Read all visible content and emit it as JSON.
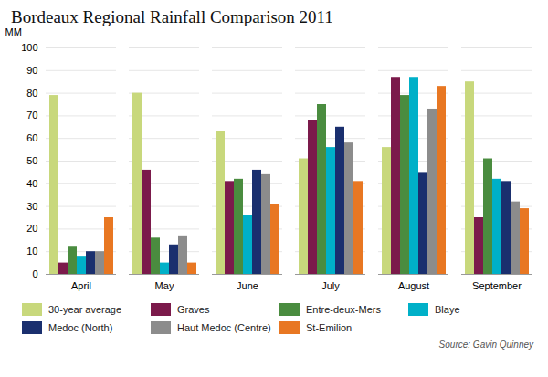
{
  "chart_data": {
    "type": "bar",
    "title": "Bordeaux Regional Rainfall Comparison 2011",
    "y_label": "MM",
    "categories": [
      "April",
      "May",
      "June",
      "July",
      "August",
      "September"
    ],
    "series": [
      {
        "name": "30-year average",
        "color": "#c8d87c",
        "values": [
          79,
          80,
          63,
          51,
          56,
          85
        ]
      },
      {
        "name": "Graves",
        "color": "#7b1a4b",
        "values": [
          5,
          46,
          41,
          68,
          87,
          25
        ]
      },
      {
        "name": "Entre-deux-Mers",
        "color": "#4a8c3f",
        "values": [
          12,
          16,
          42,
          75,
          79,
          51
        ]
      },
      {
        "name": "Blaye",
        "color": "#00b0c8",
        "values": [
          8,
          5,
          26,
          56,
          87,
          42
        ]
      },
      {
        "name": "Medoc (North)",
        "color": "#1a2f6e",
        "values": [
          10,
          13,
          46,
          65,
          45,
          41
        ]
      },
      {
        "name": "Haut Medoc (Centre)",
        "color": "#8c8c8c",
        "values": [
          10,
          17,
          44,
          58,
          73,
          32
        ]
      },
      {
        "name": "St-Emilion",
        "color": "#e87722",
        "values": [
          25,
          5,
          31,
          41,
          83,
          29
        ]
      }
    ],
    "ylim": [
      0,
      100
    ],
    "yticks": [
      0,
      10,
      20,
      30,
      40,
      50,
      60,
      70,
      80,
      90,
      100
    ],
    "grid": true,
    "legend": "bottom",
    "annotations": [
      "Source: Gavin Quinney"
    ]
  }
}
